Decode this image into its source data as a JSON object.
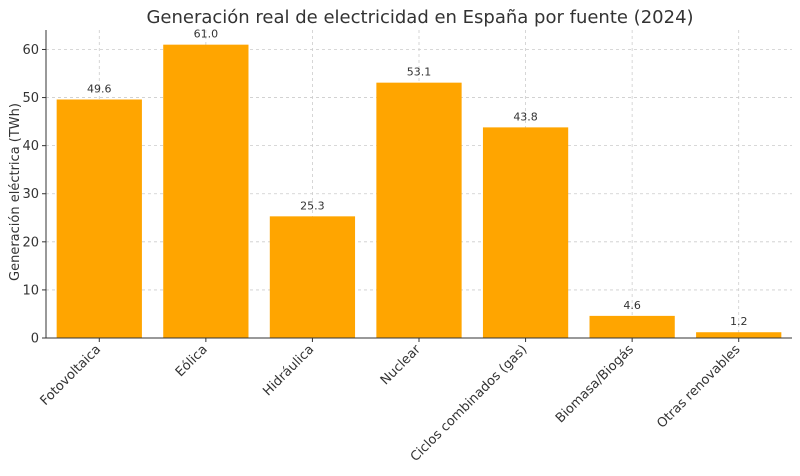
{
  "chart_data": {
    "type": "bar",
    "title": "Generación real de electricidad en España por fuente (2024)",
    "xlabel": "",
    "ylabel": "Generación eléctrica (TWh)",
    "categories": [
      "Fotovoltaica",
      "Eólica",
      "Hidráulica",
      "Nuclear",
      "Ciclos combinados (gas)",
      "Biomasa/Biogás",
      "Otras renovables"
    ],
    "values": [
      49.6,
      61.0,
      25.3,
      53.1,
      43.8,
      4.6,
      1.2
    ],
    "value_labels": [
      "49.6",
      "61.0",
      "25.3",
      "53.1",
      "43.8",
      "4.6",
      "1.2"
    ],
    "ylim": [
      0,
      64.05
    ],
    "yticks": [
      0,
      10,
      20,
      30,
      40,
      50,
      60
    ],
    "grid": true,
    "bar_color": "#FFA500"
  }
}
